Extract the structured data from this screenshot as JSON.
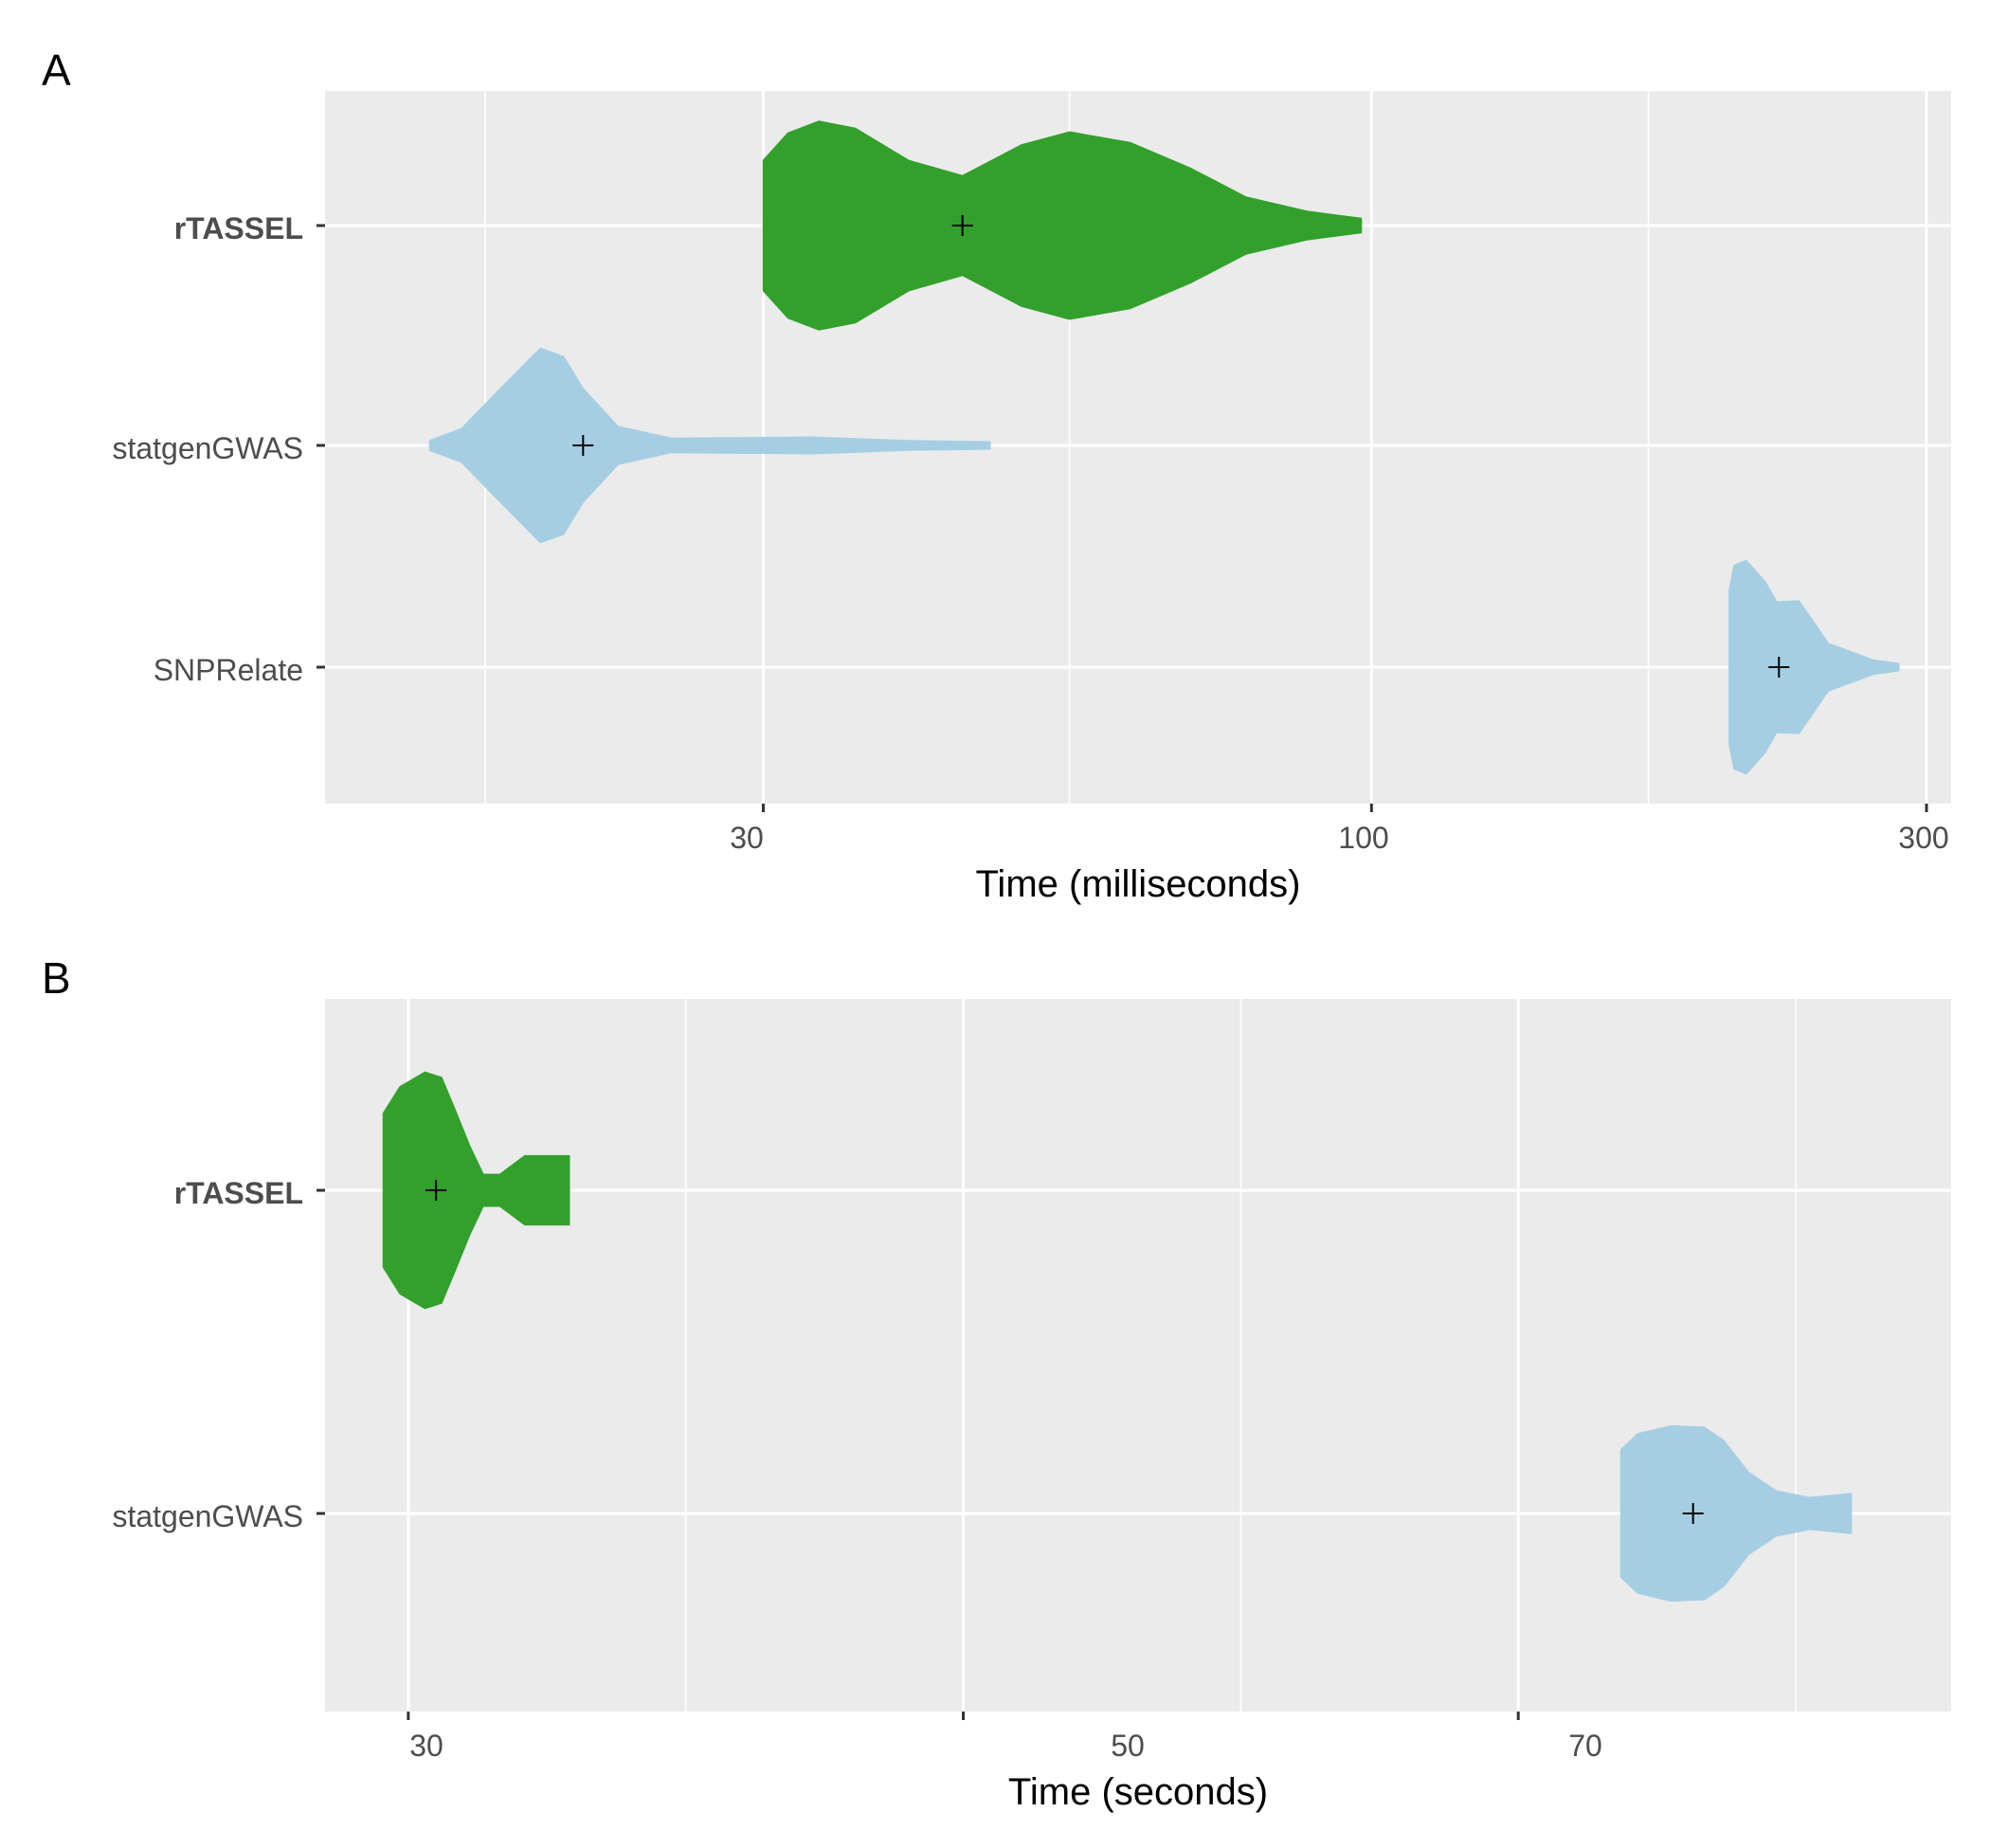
{
  "chart_data": [
    {
      "panel": "A",
      "type": "violin",
      "orientation": "horizontal",
      "xlabel": "Time (milliseconds)",
      "xscale": "log10",
      "xlim": [
        12.6,
        315
      ],
      "x_ticks": [
        30,
        100,
        300
      ],
      "x_tick_labels": [
        "30",
        "100",
        "300"
      ],
      "x_minor_gridlines": [
        17.3,
        55,
        173
      ],
      "categories": [
        "rTASSEL",
        "statgenGWAS",
        "SNPRelate"
      ],
      "bold_categories": [
        "rTASSEL"
      ],
      "grid": true,
      "series": [
        {
          "category": "rTASSEL",
          "color": "#33a02c",
          "mean_marker": 44.5,
          "profile": [
            [
              30.0,
              0.55
            ],
            [
              31.5,
              0.78
            ],
            [
              33.5,
              0.88
            ],
            [
              36,
              0.82
            ],
            [
              40,
              0.55
            ],
            [
              44.5,
              0.42
            ],
            [
              50,
              0.68
            ],
            [
              55,
              0.79
            ],
            [
              62,
              0.7
            ],
            [
              70,
              0.48
            ],
            [
              78,
              0.24
            ],
            [
              88,
              0.12
            ],
            [
              98,
              0.06
            ]
          ]
        },
        {
          "category": "statgenGWAS",
          "color": "#a6cee3",
          "mean_marker": 21.0,
          "profile": [
            [
              15.5,
              0.04
            ],
            [
              16.5,
              0.14
            ],
            [
              18,
              0.52
            ],
            [
              19.3,
              0.82
            ],
            [
              20.2,
              0.75
            ],
            [
              21.0,
              0.48
            ],
            [
              22.5,
              0.16
            ],
            [
              25,
              0.06
            ],
            [
              33,
              0.07
            ],
            [
              40,
              0.04
            ],
            [
              47,
              0.03
            ]
          ]
        },
        {
          "category": "SNPRelate",
          "color": "#a6cee3",
          "mean_marker": 224,
          "profile": [
            [
              203,
              0.65
            ],
            [
              205,
              0.86
            ],
            [
              210,
              0.9
            ],
            [
              218,
              0.72
            ],
            [
              223,
              0.55
            ],
            [
              233,
              0.56
            ],
            [
              240,
              0.38
            ],
            [
              247,
              0.2
            ],
            [
              260,
              0.12
            ],
            [
              270,
              0.06
            ],
            [
              284,
              0.03
            ]
          ]
        }
      ]
    },
    {
      "panel": "B",
      "type": "violin",
      "orientation": "horizontal",
      "xlabel": "Time (seconds)",
      "xscale": "linear",
      "xlim": [
        27,
        85.6
      ],
      "x_ticks": [
        30,
        50,
        70
      ],
      "x_tick_labels": [
        "30",
        "50",
        "70"
      ],
      "x_minor_gridlines": [
        40,
        60,
        80
      ],
      "categories": [
        "rTASSEL",
        "statgenGWAS"
      ],
      "bold_categories": [
        "rTASSEL"
      ],
      "grid": true,
      "series": [
        {
          "category": "rTASSEL",
          "color": "#33a02c",
          "mean_marker": 31.0,
          "profile": [
            [
              29.1,
              0.58
            ],
            [
              29.7,
              0.78
            ],
            [
              30.6,
              0.89
            ],
            [
              31.2,
              0.85
            ],
            [
              31.7,
              0.6
            ],
            [
              32.2,
              0.34
            ],
            [
              32.7,
              0.12
            ],
            [
              33.3,
              0.12
            ],
            [
              34.2,
              0.26
            ],
            [
              35.8,
              0.26
            ]
          ]
        },
        {
          "category": "statgenGWAS",
          "color": "#a6cee3",
          "mean_marker": 76.3,
          "profile": [
            [
              73.7,
              0.48
            ],
            [
              74.3,
              0.6
            ],
            [
              75.5,
              0.66
            ],
            [
              76.7,
              0.65
            ],
            [
              77.4,
              0.55
            ],
            [
              78.3,
              0.31
            ],
            [
              79.3,
              0.17
            ],
            [
              80.5,
              0.12
            ],
            [
              82.0,
              0.15
            ]
          ]
        }
      ]
    }
  ],
  "colors": {
    "panel_background": "#ebebeb",
    "grid": "#ffffff",
    "tick_mark": "#333333",
    "mean_marker": "#000000"
  }
}
